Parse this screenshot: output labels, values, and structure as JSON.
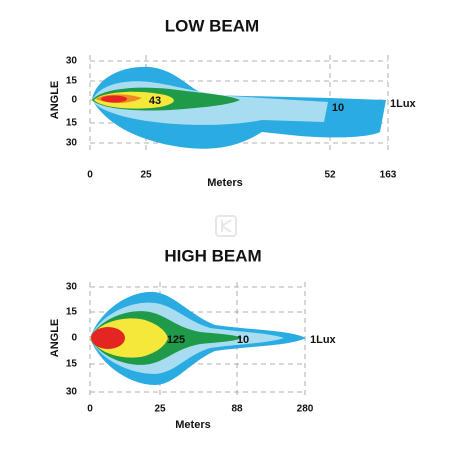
{
  "charts": [
    {
      "title": "LOW BEAM",
      "y_label": "ANGLE",
      "x_label": "Meters",
      "y_tick_labels": [
        "30",
        "15",
        "0",
        "15",
        "30"
      ],
      "x_tick_labels": [
        "0",
        "25",
        "52",
        "163"
      ],
      "contour_labels": [
        "43",
        "10",
        "1Lux"
      ]
    },
    {
      "title": "HIGH BEAM",
      "y_label": "ANGLE",
      "x_label": "Meters",
      "y_tick_labels": [
        "30",
        "15",
        "0",
        "15",
        "30"
      ],
      "x_tick_labels": [
        "0",
        "25",
        "88",
        "280"
      ],
      "contour_labels": [
        "125",
        "10",
        "1Lux"
      ]
    }
  ]
}
